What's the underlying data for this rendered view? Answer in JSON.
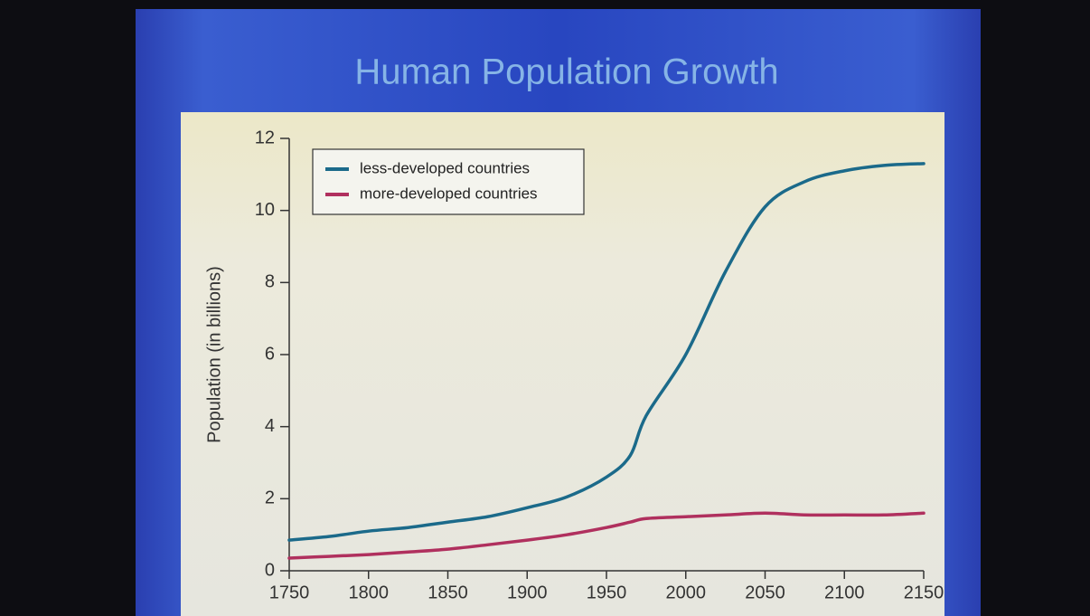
{
  "chart_data": {
    "type": "line",
    "title": "Human Population Growth",
    "ylabel": "Population (in billions)",
    "x": [
      1750,
      1775,
      1800,
      1825,
      1850,
      1875,
      1900,
      1925,
      1950,
      1965,
      1975,
      2000,
      2025,
      2050,
      2075,
      2100,
      2125,
      2150
    ],
    "series": [
      {
        "name": "less-developed countries",
        "color": "#1b6a8a",
        "values": [
          0.85,
          0.95,
          1.1,
          1.2,
          1.35,
          1.5,
          1.75,
          2.05,
          2.6,
          3.2,
          4.3,
          6.0,
          8.3,
          10.1,
          10.8,
          11.1,
          11.25,
          11.3
        ]
      },
      {
        "name": "more-developed countries",
        "color": "#b0305e",
        "values": [
          0.35,
          0.4,
          0.45,
          0.52,
          0.6,
          0.72,
          0.85,
          1.0,
          1.2,
          1.35,
          1.45,
          1.5,
          1.55,
          1.6,
          1.55,
          1.55,
          1.55,
          1.6
        ]
      }
    ],
    "xlim": [
      1750,
      2150
    ],
    "xticks": [
      1750,
      1800,
      1850,
      1900,
      1950,
      2000,
      2050,
      2100,
      2150
    ],
    "ylim": [
      0,
      12
    ],
    "yticks": [
      0,
      2,
      4,
      6,
      8,
      10,
      12
    ],
    "legend": "top-left"
  }
}
